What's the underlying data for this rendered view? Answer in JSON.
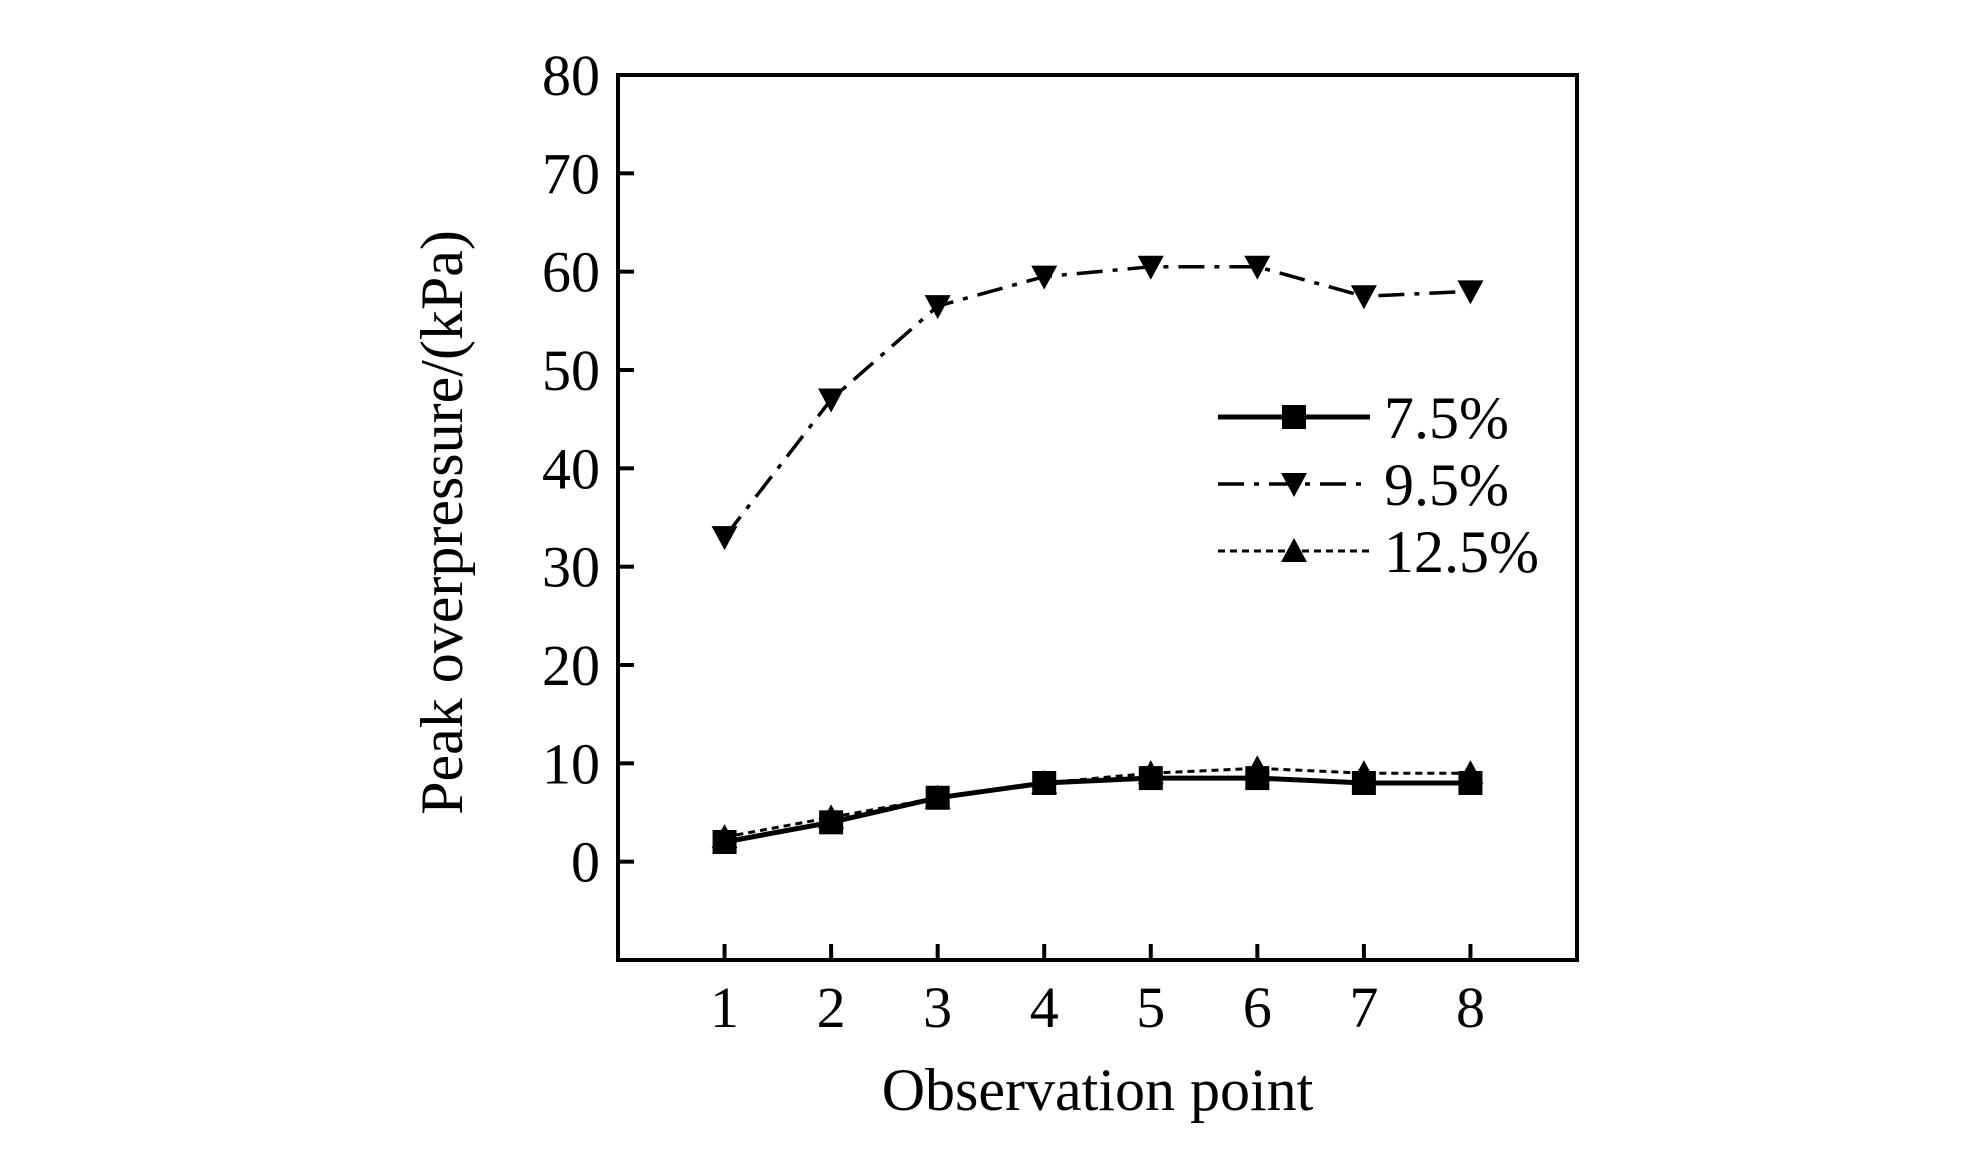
{
  "chart_data": {
    "type": "line",
    "title": "",
    "xlabel": "Observation point",
    "ylabel": "Peak overpressure/(kPa)",
    "x": [
      1,
      2,
      3,
      4,
      5,
      6,
      7,
      8
    ],
    "xlim": [
      0,
      9
    ],
    "ylim": [
      -10,
      80
    ],
    "xticks": [
      1,
      2,
      3,
      4,
      5,
      6,
      7,
      8
    ],
    "yticks": [
      0,
      10,
      20,
      30,
      40,
      50,
      60,
      70,
      80
    ],
    "grid": false,
    "legend_position": "right",
    "series": [
      {
        "name": "7.5%",
        "marker": "square",
        "line": "solid",
        "values": [
          2.0,
          4.0,
          6.5,
          8.0,
          8.5,
          8.5,
          8.0,
          8.0
        ]
      },
      {
        "name": "9.5%",
        "marker": "triangle-down",
        "line": "dash-dot",
        "values": [
          33.0,
          47.0,
          56.5,
          59.5,
          60.5,
          60.5,
          57.5,
          58.0
        ]
      },
      {
        "name": "12.5%",
        "marker": "triangle-up",
        "line": "dotted",
        "values": [
          2.5,
          4.5,
          6.5,
          8.0,
          9.0,
          9.5,
          9.0,
          9.0
        ]
      }
    ],
    "colors": {
      "line": "#000000",
      "background": "#ffffff"
    }
  }
}
